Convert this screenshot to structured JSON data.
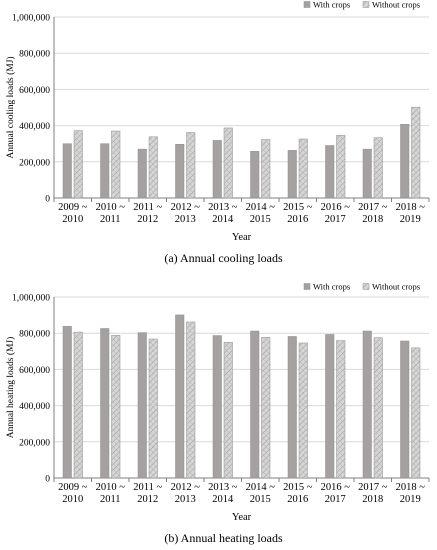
{
  "colors": {
    "with_crops": "#a5a1a1",
    "without_crops_fill": "#d6d6d6",
    "without_crops_hatch": "#9a9a9a",
    "bar_stroke": "#8c8c8c",
    "axis": "#7f7f7f",
    "grid": "#d9d9d9"
  },
  "chart_data": [
    {
      "type": "bar",
      "caption": "(a) Annual cooling loads",
      "xlabel": "Year",
      "ylabel": "Annual cooling loads (MJ)",
      "ylim": [
        0,
        1000000
      ],
      "yticks": [
        "0",
        "200,000",
        "400,000",
        "600,000",
        "800,000",
        "1,000,000"
      ],
      "ytick_values": [
        0,
        200000,
        400000,
        600000,
        800000,
        1000000
      ],
      "grid": true,
      "legend_position": "top-right",
      "categories": [
        [
          "2009 ~",
          "2010"
        ],
        [
          "2010 ~",
          "2011"
        ],
        [
          "2011 ~",
          "2012"
        ],
        [
          "2012 ~",
          "2013"
        ],
        [
          "2013 ~",
          "2014"
        ],
        [
          "2014 ~",
          "2015"
        ],
        [
          "2015 ~",
          "2016"
        ],
        [
          "2016 ~",
          "2017"
        ],
        [
          "2017 ~",
          "2018"
        ],
        [
          "2018 ~",
          "2019"
        ]
      ],
      "series": [
        {
          "name": "With crops",
          "values": [
            300000,
            300000,
            270000,
            297000,
            318000,
            258000,
            263000,
            290000,
            270000,
            407000
          ]
        },
        {
          "name": "Without crops",
          "values": [
            372000,
            370000,
            338000,
            362000,
            387000,
            323000,
            326000,
            347000,
            333000,
            502000
          ]
        }
      ]
    },
    {
      "type": "bar",
      "caption": "(b) Annual heating loads",
      "xlabel": "Year",
      "ylabel": "Annual heating loads (MJ)",
      "ylim": [
        0,
        1000000
      ],
      "yticks": [
        "0",
        "200,000",
        "400,000",
        "600,000",
        "800,000",
        "1,000,000"
      ],
      "ytick_values": [
        0,
        200000,
        400000,
        600000,
        800000,
        1000000
      ],
      "grid": true,
      "legend_position": "top-right",
      "categories": [
        [
          "2009 ~",
          "2010"
        ],
        [
          "2010 ~",
          "2011"
        ],
        [
          "2011 ~",
          "2012"
        ],
        [
          "2012 ~",
          "2013"
        ],
        [
          "2013 ~",
          "2014"
        ],
        [
          "2014 ~",
          "2015"
        ],
        [
          "2015 ~",
          "2016"
        ],
        [
          "2016 ~",
          "2017"
        ],
        [
          "2017 ~",
          "2018"
        ],
        [
          "2018 ~",
          "2019"
        ]
      ],
      "series": [
        {
          "name": "With crops",
          "values": [
            838000,
            826000,
            803000,
            901000,
            787000,
            812000,
            782000,
            793000,
            812000,
            757000
          ]
        },
        {
          "name": "Without crops",
          "values": [
            806000,
            788000,
            768000,
            862000,
            750000,
            777000,
            746000,
            759000,
            775000,
            719000
          ]
        }
      ]
    }
  ]
}
